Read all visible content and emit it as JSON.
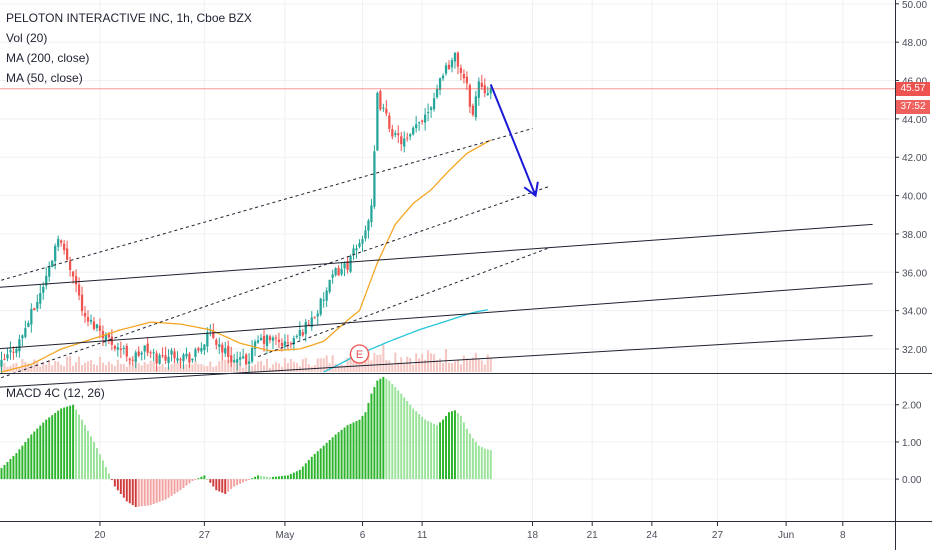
{
  "legend": {
    "symbol": "PELOTON INTERACTIVE INC, 1h, Cboe BZX",
    "vol": "Vol (20)",
    "ma200": "MA (200, close)",
    "ma50": "MA (50, close)",
    "macd": "MACD 4C (12, 26)"
  },
  "last_price": {
    "price_label": "45.57",
    "countdown_label": "37:52",
    "value": 45.57
  },
  "earnings_marker": {
    "label": "E"
  },
  "colors": {
    "up": "#26a69a",
    "down": "#ef5350",
    "ma50": "#f5a623",
    "ma200": "#26c6da",
    "trend": "#1e2130",
    "arrow": "#1a1ad6",
    "volume": "#f4c7c3",
    "hist_up_dark": "#2cb52c",
    "hist_up_light": "#9be39b",
    "hist_down_dark": "#d03c3c",
    "hist_down_light": "#f2a0a0",
    "grid": "#eef0f3",
    "axis_text": "#4a4e5a",
    "price_line": "#ef5350"
  },
  "chart_data": [
    {
      "type": "candlestick",
      "title": "PELOTON INTERACTIVE INC, 1h, Cboe BZX",
      "y_ticks": [
        "32.00",
        "34.00",
        "36.00",
        "38.00",
        "40.00",
        "42.00",
        "44.00",
        "46.00",
        "48.00",
        "50.00"
      ],
      "ylim": [
        30.8,
        50.2
      ],
      "x_ticks": [
        {
          "label": "20",
          "slot": 33
        },
        {
          "label": "27",
          "slot": 68
        },
        {
          "label": "May",
          "slot": 95
        },
        {
          "label": "6",
          "slot": 121
        },
        {
          "label": "11",
          "slot": 141
        },
        {
          "label": "18",
          "slot": 178
        },
        {
          "label": "21",
          "slot": 198
        },
        {
          "label": "24",
          "slot": 218
        },
        {
          "label": "27",
          "slot": 240
        },
        {
          "label": "Jun",
          "slot": 263
        },
        {
          "label": "8",
          "slot": 282
        }
      ],
      "slots_total": 300,
      "data_slots": 165,
      "anchors_close": [
        [
          0,
          31.2
        ],
        [
          6,
          32.4
        ],
        [
          12,
          34.5
        ],
        [
          16,
          36.2
        ],
        [
          19,
          38
        ],
        [
          21,
          37.0
        ],
        [
          24,
          36.0
        ],
        [
          28,
          33.5
        ],
        [
          32,
          33.2
        ],
        [
          36,
          32.5
        ],
        [
          40,
          32.0
        ],
        [
          44,
          31.5
        ],
        [
          48,
          32.0
        ],
        [
          52,
          31.5
        ],
        [
          58,
          31.8
        ],
        [
          64,
          31.5
        ],
        [
          70,
          32.8
        ],
        [
          74,
          32.0
        ],
        [
          78,
          31.4
        ],
        [
          82,
          31.3
        ],
        [
          86,
          32.4
        ],
        [
          90,
          32.5
        ],
        [
          96,
          32.2
        ],
        [
          100,
          32.8
        ],
        [
          106,
          34.0
        ],
        [
          112,
          36.0
        ],
        [
          116,
          36.4
        ],
        [
          120,
          37.5
        ],
        [
          124,
          39.2
        ],
        [
          126,
          45.1
        ],
        [
          128,
          44.4
        ],
        [
          132,
          43.0
        ],
        [
          136,
          42.8
        ],
        [
          140,
          43.8
        ],
        [
          144,
          44.8
        ],
        [
          148,
          46.5
        ],
        [
          152,
          47.2
        ],
        [
          154,
          46.5
        ],
        [
          156,
          45.6
        ],
        [
          158,
          44.2
        ],
        [
          160,
          46.0
        ],
        [
          162,
          45.6
        ],
        [
          164,
          45.57
        ]
      ],
      "ma50_anchors": [
        [
          0,
          30.8
        ],
        [
          10,
          31.2
        ],
        [
          20,
          32.0
        ],
        [
          30,
          32.5
        ],
        [
          40,
          33.0
        ],
        [
          50,
          33.4
        ],
        [
          60,
          33.3
        ],
        [
          70,
          33.0
        ],
        [
          80,
          32.3
        ],
        [
          90,
          31.9
        ],
        [
          100,
          32.0
        ],
        [
          108,
          32.4
        ],
        [
          116,
          33.5
        ],
        [
          120,
          34.0
        ],
        [
          126,
          36.5
        ],
        [
          132,
          38.5
        ],
        [
          138,
          39.6
        ],
        [
          144,
          40.3
        ],
        [
          150,
          41.3
        ],
        [
          156,
          42.2
        ],
        [
          164,
          42.9
        ]
      ],
      "ma200_anchors": [
        [
          108,
          30.8
        ],
        [
          112,
          31.1
        ],
        [
          118,
          31.6
        ],
        [
          124,
          32.0
        ],
        [
          130,
          32.4
        ],
        [
          140,
          33.0
        ],
        [
          150,
          33.5
        ],
        [
          158,
          33.9
        ],
        [
          163,
          34.05
        ]
      ],
      "volume_profile": [
        [
          0,
          0.35
        ],
        [
          20,
          0.45
        ],
        [
          40,
          0.4
        ],
        [
          60,
          0.35
        ],
        [
          80,
          0.35
        ],
        [
          100,
          0.4
        ],
        [
          118,
          0.6
        ],
        [
          124,
          0.9
        ],
        [
          126,
          1.0
        ],
        [
          130,
          0.75
        ],
        [
          140,
          0.6
        ],
        [
          150,
          0.7
        ],
        [
          160,
          0.55
        ],
        [
          164,
          0.5
        ]
      ],
      "trend_lines": [
        {
          "style": "solid",
          "from": [
            -2,
            35.2
          ],
          "to": [
            292,
            38.5
          ]
        },
        {
          "style": "solid",
          "from": [
            -2,
            32.0
          ],
          "to": [
            292,
            35.4
          ]
        },
        {
          "style": "solid",
          "from": [
            -2,
            30.0
          ],
          "to": [
            292,
            32.7
          ]
        },
        {
          "style": "dashed",
          "from": [
            -2,
            35.5
          ],
          "to": [
            178,
            43.5
          ]
        },
        {
          "style": "dashed",
          "from": [
            -2,
            30.4
          ],
          "to": [
            184,
            40.5
          ]
        },
        {
          "style": "dashed",
          "from": [
            86,
            31.6
          ],
          "to": [
            184,
            37.3
          ]
        }
      ],
      "projection_arrow": {
        "from": [
          164,
          45.8
        ],
        "to": [
          179,
          40.0
        ]
      },
      "earnings_slot": 120
    },
    {
      "type": "histogram",
      "title": "MACD 4C (12, 26)",
      "y_ticks": [
        "0.00",
        "1.00",
        "2.00"
      ],
      "ylim": [
        -1.1,
        2.8
      ],
      "anchors": [
        [
          0,
          0.3
        ],
        [
          5,
          0.7
        ],
        [
          10,
          1.2
        ],
        [
          15,
          1.6
        ],
        [
          20,
          1.9
        ],
        [
          24,
          2.0
        ],
        [
          27,
          1.6
        ],
        [
          31,
          1.0
        ],
        [
          34,
          0.5
        ],
        [
          36,
          0.15
        ],
        [
          38,
          -0.2
        ],
        [
          42,
          -0.6
        ],
        [
          45,
          -0.75
        ],
        [
          50,
          -0.7
        ],
        [
          55,
          -0.55
        ],
        [
          60,
          -0.3
        ],
        [
          64,
          -0.05
        ],
        [
          68,
          0.1
        ],
        [
          72,
          -0.3
        ],
        [
          75,
          -0.4
        ],
        [
          78,
          -0.2
        ],
        [
          82,
          -0.05
        ],
        [
          86,
          0.1
        ],
        [
          90,
          0.05
        ],
        [
          96,
          0.1
        ],
        [
          100,
          0.25
        ],
        [
          104,
          0.6
        ],
        [
          108,
          0.9
        ],
        [
          112,
          1.2
        ],
        [
          116,
          1.45
        ],
        [
          120,
          1.6
        ],
        [
          122,
          1.8
        ],
        [
          124,
          2.3
        ],
        [
          126,
          2.65
        ],
        [
          128,
          2.75
        ],
        [
          130,
          2.65
        ],
        [
          134,
          2.3
        ],
        [
          138,
          1.9
        ],
        [
          142,
          1.6
        ],
        [
          146,
          1.45
        ],
        [
          148,
          1.6
        ],
        [
          150,
          1.8
        ],
        [
          152,
          1.85
        ],
        [
          154,
          1.7
        ],
        [
          156,
          1.35
        ],
        [
          158,
          1.1
        ],
        [
          160,
          0.9
        ],
        [
          162,
          0.82
        ],
        [
          164,
          0.78
        ]
      ]
    }
  ]
}
